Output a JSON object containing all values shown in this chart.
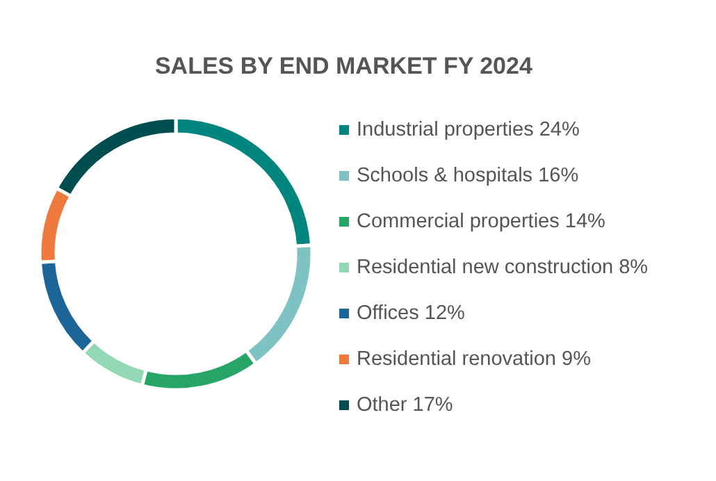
{
  "chart_data": {
    "type": "donut",
    "title": "SALES BY END MARKET FY 2024",
    "categories": [
      "Industrial properties 24%",
      "Schools & hospitals 16%",
      "Commercial properties 14%",
      "Residential new construction 8%",
      "Offices 12%",
      "Residential renovation 9%",
      "Other 17%"
    ],
    "values": [
      24,
      16,
      14,
      8,
      12,
      9,
      17
    ],
    "colors": [
      "#00857f",
      "#7fc2c3",
      "#26a566",
      "#93d8b4",
      "#1b6598",
      "#ee7a3e",
      "#004e50"
    ],
    "legend": "right"
  }
}
